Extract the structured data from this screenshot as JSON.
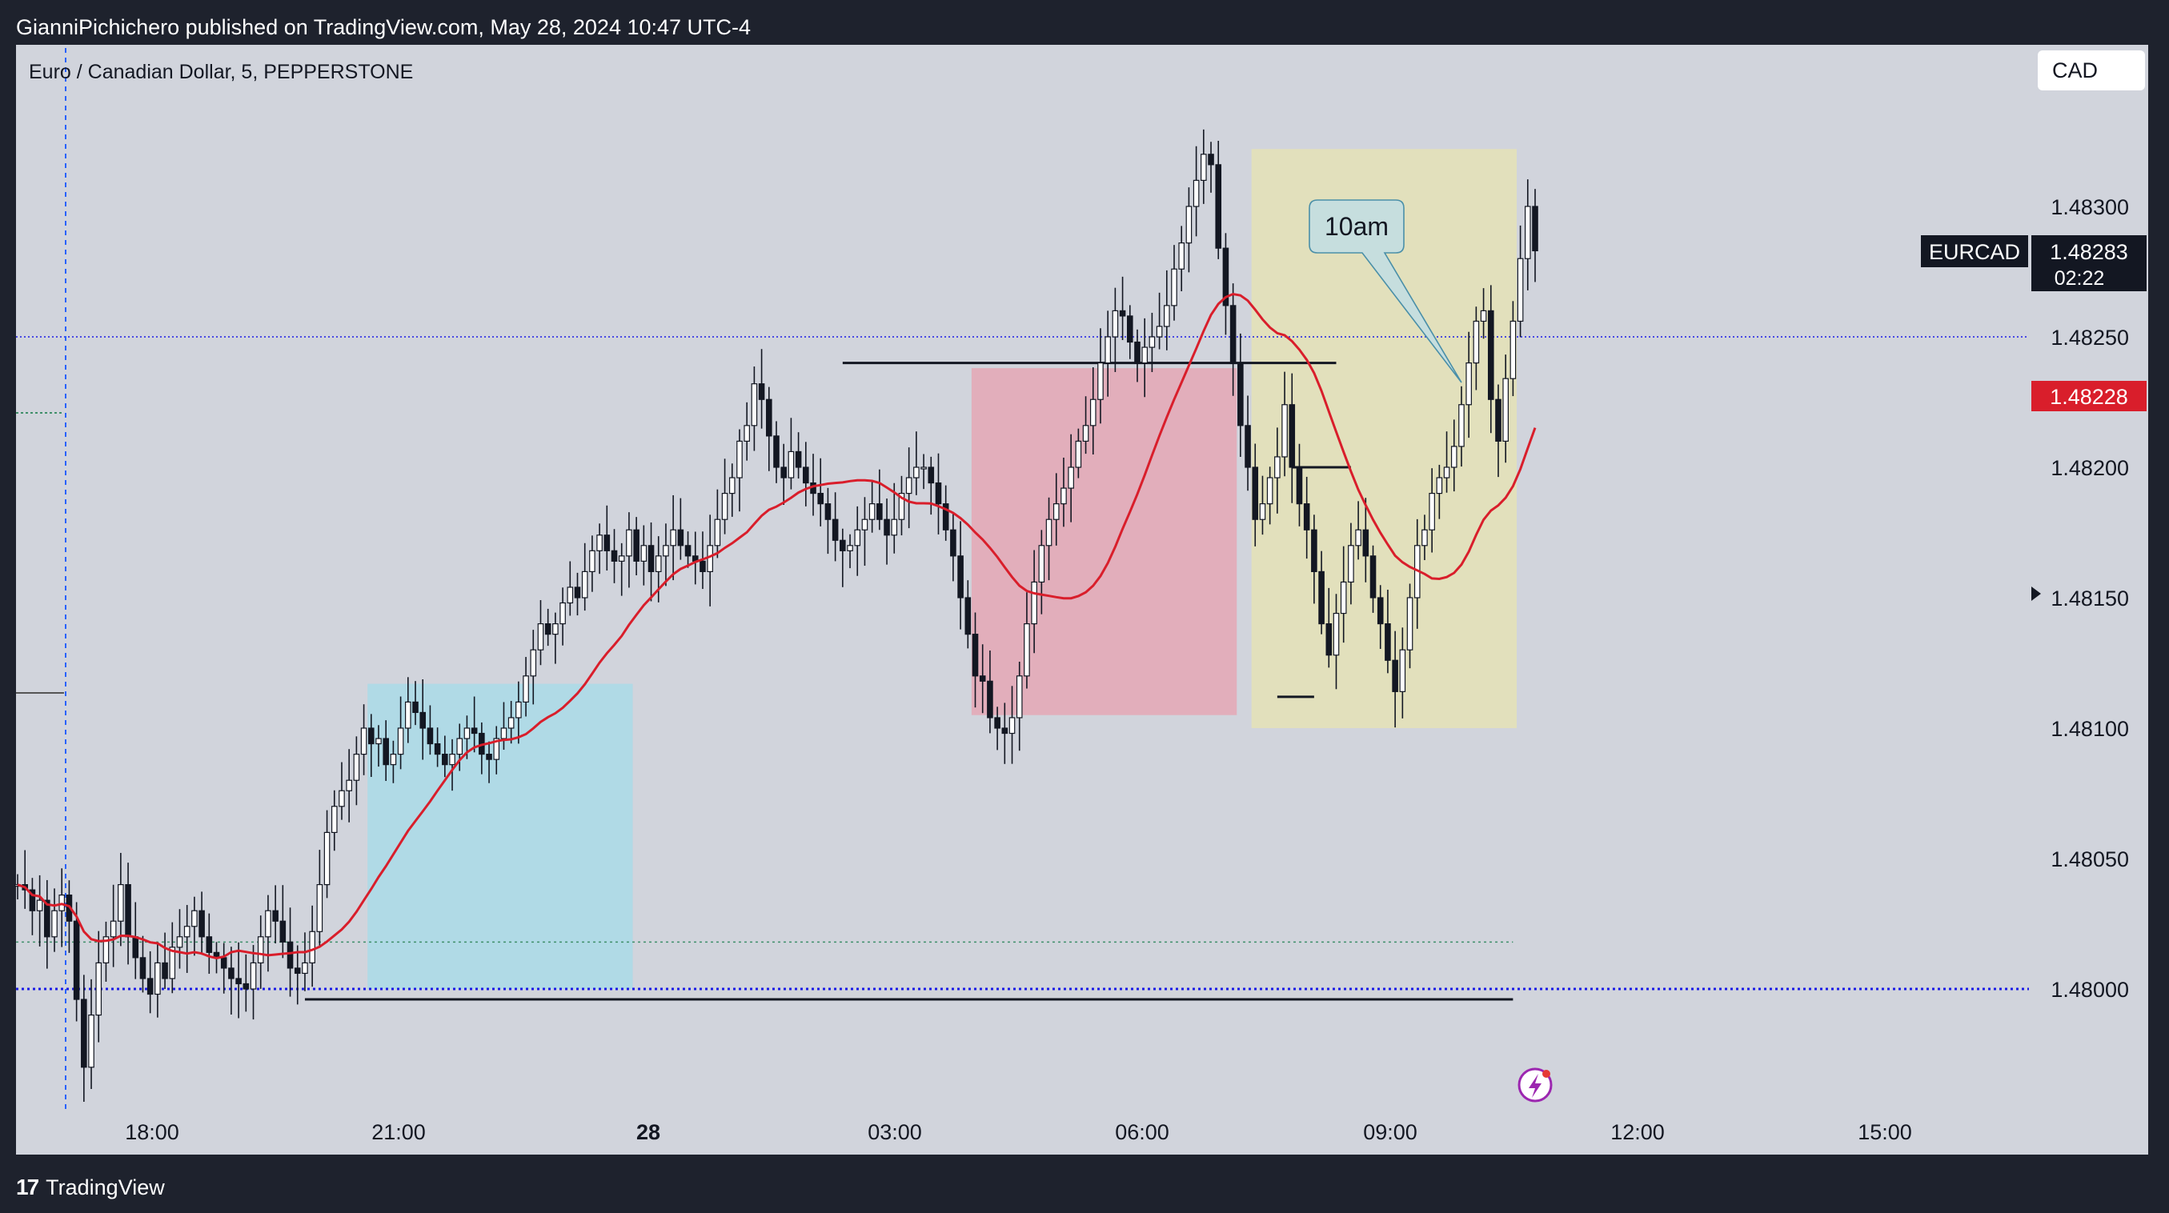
{
  "header": {
    "published_text": "GianniPichichero published on TradingView.com, May 28, 2024 10:47 UTC-4"
  },
  "chart_title": "Euro / Canadian Dollar, 5, PEPPERSTONE",
  "currency_button": "CAD",
  "footer": {
    "brand": "TradingView",
    "logo_mark": "17"
  },
  "colors": {
    "background": "#1e222d",
    "plot_background": "#d1d4dc",
    "bull_candle_fill": "#ffffff",
    "bear_candle_fill": "#131722",
    "candle_outline": "#131722",
    "ma_line": "#d91e2b",
    "current_price_tag": "#d91e2b",
    "blue_zone": "#a8dbe9",
    "red_zone": "#e6a4b3",
    "yellow_zone": "#e6e2b4",
    "dotted_blue": "#1a1ae6",
    "dotted_green": "#3f8f6a"
  },
  "chart_data": {
    "type": "candlestick",
    "symbol": "EURCAD",
    "x_tick_labels": [
      "18:00",
      "21:00",
      "28",
      "03:00",
      "06:00",
      "09:00",
      "12:00",
      "15:00"
    ],
    "y_tick_labels": [
      "1.48300",
      "1.48250",
      "1.48200",
      "1.48150",
      "1.48100",
      "1.48050",
      "1.48000"
    ],
    "ylim": [
      1.47965,
      1.48385
    ],
    "price_labels": {
      "symbol_tag": "EURCAD",
      "last_price": "1.48283",
      "countdown": "02:22",
      "ma_price": "1.48228"
    },
    "horizontal_levels": [
      {
        "name": "support-line",
        "price": 1.47996,
        "style": "solid"
      },
      {
        "name": "resistance-line",
        "price": 1.4824,
        "style": "solid"
      },
      {
        "name": "blue-dotted-level",
        "price": 1.48,
        "style": "dotted"
      },
      {
        "name": "blue-dotted-level-upper",
        "price": 1.4825,
        "style": "dotted"
      },
      {
        "name": "green-dotted-level",
        "price": 1.48018,
        "style": "dotted"
      }
    ],
    "annotations": [
      {
        "name": "callout",
        "text": "10am"
      }
    ],
    "zones": [
      {
        "name": "blue-zone",
        "color": "blue",
        "price_top": 1.48117,
        "price_bottom": 1.48
      },
      {
        "name": "red-zone",
        "color": "red",
        "price_top": 1.48238,
        "price_bottom": 1.48105
      },
      {
        "name": "yellow-zone",
        "color": "yellow",
        "price_top": 1.48322,
        "price_bottom": 1.481
      }
    ],
    "candles_close": [
      1.4804,
      1.48038,
      1.4803,
      1.48034,
      1.4802,
      1.4803,
      1.48036,
      1.48026,
      1.47996,
      1.4797,
      1.4799,
      1.4801,
      1.4802,
      1.48026,
      1.4804,
      1.4802,
      1.48012,
      1.48004,
      1.47998,
      1.4801,
      1.48004,
      1.48016,
      1.4802,
      1.48024,
      1.4803,
      1.4802,
      1.48014,
      1.48012,
      1.48008,
      1.48004,
      1.48002,
      1.48,
      1.4801,
      1.4802,
      1.4803,
      1.48026,
      1.48018,
      1.48008,
      1.48006,
      1.4801,
      1.48022,
      1.4804,
      1.4806,
      1.4807,
      1.48076,
      1.4808,
      1.4809,
      1.481,
      1.48094,
      1.48096,
      1.48086,
      1.4809,
      1.481,
      1.4811,
      1.48106,
      1.481,
      1.48094,
      1.4809,
      1.48086,
      1.4809,
      1.48096,
      1.481,
      1.48098,
      1.4809,
      1.48088,
      1.48096,
      1.481,
      1.48104,
      1.4811,
      1.4812,
      1.4813,
      1.4814,
      1.48136,
      1.4814,
      1.48148,
      1.48154,
      1.4815,
      1.4816,
      1.48168,
      1.48174,
      1.48168,
      1.48164,
      1.48166,
      1.48176,
      1.48164,
      1.4817,
      1.4816,
      1.48166,
      1.4817,
      1.48176,
      1.4817,
      1.48166,
      1.48164,
      1.4816,
      1.4817,
      1.4818,
      1.4819,
      1.48196,
      1.4821,
      1.48216,
      1.48232,
      1.48226,
      1.48212,
      1.482,
      1.48196,
      1.48206,
      1.482,
      1.48194,
      1.4819,
      1.48186,
      1.4818,
      1.48172,
      1.48168,
      1.4817,
      1.48176,
      1.4818,
      1.48186,
      1.4818,
      1.48174,
      1.4818,
      1.4819,
      1.48196,
      1.482,
      1.482,
      1.48194,
      1.48186,
      1.48176,
      1.48166,
      1.4815,
      1.48136,
      1.4812,
      1.48118,
      1.48104,
      1.481,
      1.48098,
      1.48104,
      1.4812,
      1.4814,
      1.48156,
      1.4817,
      1.4818,
      1.48186,
      1.48192,
      1.482,
      1.4821,
      1.48216,
      1.48226,
      1.4824,
      1.4825,
      1.4826,
      1.48258,
      1.48248,
      1.4824,
      1.48246,
      1.4825,
      1.48254,
      1.48262,
      1.48276,
      1.48286,
      1.483,
      1.4831,
      1.4832,
      1.48316,
      1.48284,
      1.48262,
      1.4824,
      1.48216,
      1.482,
      1.4818,
      1.48186,
      1.48196,
      1.48204,
      1.48224,
      1.482,
      1.48186,
      1.48176,
      1.4816,
      1.4814,
      1.48128,
      1.48144,
      1.48156,
      1.4817,
      1.48176,
      1.48166,
      1.4815,
      1.4814,
      1.48126,
      1.48114,
      1.4813,
      1.4815,
      1.4817,
      1.48176,
      1.4819,
      1.48196,
      1.482,
      1.48208,
      1.48224,
      1.4824,
      1.48256,
      1.4826,
      1.48226,
      1.4821,
      1.48234,
      1.48256,
      1.4828,
      1.483,
      1.48283
    ]
  }
}
